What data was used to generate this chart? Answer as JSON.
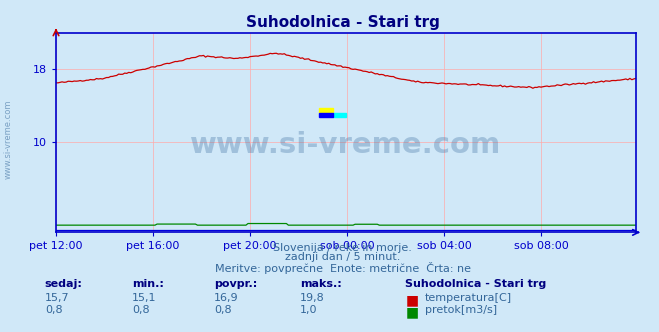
{
  "title": "Suhodolnica - Stari trg",
  "title_color": "#000080",
  "bg_color": "#d0e8f8",
  "plot_bg_color": "#d0e8f8",
  "grid_color": "#ffaaaa",
  "axis_color": "#0000cc",
  "tick_color": "#0000cc",
  "x_labels": [
    "pet 12:00",
    "pet 16:00",
    "pet 20:00",
    "sob 00:00",
    "sob 04:00",
    "sob 08:00"
  ],
  "x_label_color": "#336699",
  "y_ticks": [
    10,
    18
  ],
  "ylim": [
    0,
    22
  ],
  "xlim": [
    0,
    287
  ],
  "temp_color": "#cc0000",
  "flow_color": "#008800",
  "level_color": "#0000dd",
  "watermark_text": "www.si-vreme.com",
  "watermark_color": "#336699",
  "watermark_alpha": 0.3,
  "subtitle1": "Slovenija / reke in morje.",
  "subtitle2": "zadnji dan / 5 minut.",
  "subtitle3": "Meritve: povprečne  Enote: metrične  Črta: ne",
  "subtitle_color": "#336699",
  "legend_title": "Suhodolnica - Stari trg",
  "legend_color": "#000080",
  "stat_headers": [
    "sedaj:",
    "min.:",
    "povpr.:",
    "maks.:"
  ],
  "stat_values_temp": [
    "15,7",
    "15,1",
    "16,9",
    "19,8"
  ],
  "stat_values_flow": [
    "0,8",
    "0,8",
    "0,8",
    "1,0"
  ],
  "stat_label_color": "#000080",
  "stat_value_color": "#336699",
  "side_watermark": "www.si-vreme.com",
  "side_watermark_color": "#336699"
}
